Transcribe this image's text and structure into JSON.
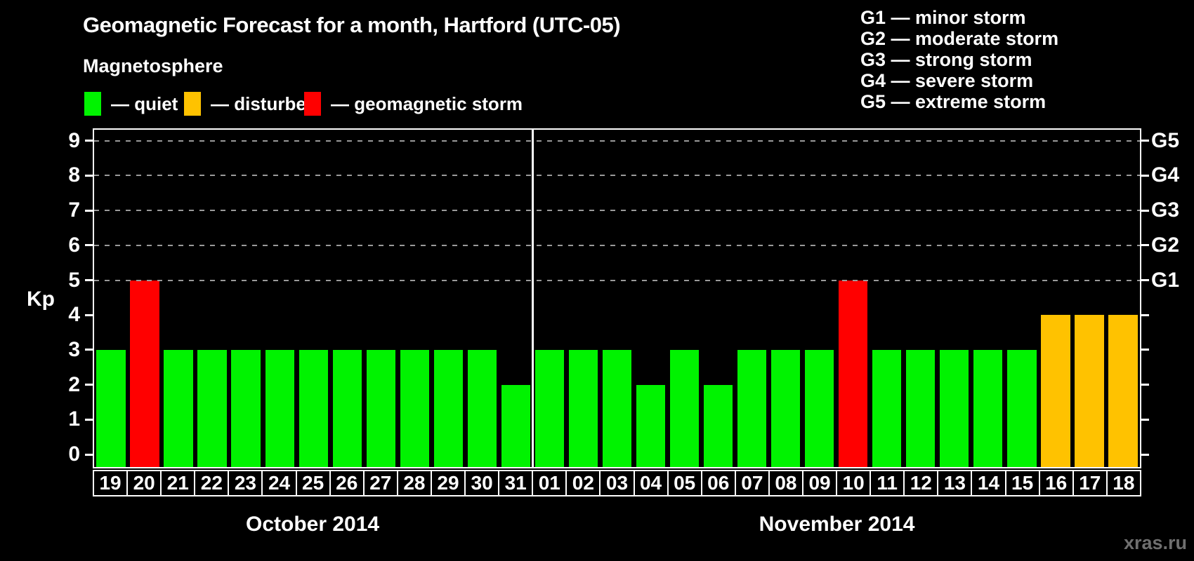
{
  "title": "Geomagnetic Forecast for a month, Hartford (UTC-05)",
  "legend_title": "Magnetosphere",
  "legend": {
    "items": [
      {
        "status": "quiet",
        "label": "— quiet",
        "color": "#00f300"
      },
      {
        "status": "disturbed",
        "label": "— disturbed",
        "color": "#ffc200"
      },
      {
        "status": "storm",
        "label": "— geomagnetic storm",
        "color": "#ff0000"
      }
    ]
  },
  "g_scale_legend": {
    "items": [
      "G1 — minor storm",
      "G2 — moderate storm",
      "G3 — strong storm",
      "G4 — severe storm",
      "G5 — extreme storm"
    ]
  },
  "watermark": "xras.ru",
  "chart_data": {
    "type": "bar",
    "title": "Geomagnetic Forecast for a month, Hartford (UTC-05)",
    "ylabel": "Kp",
    "ylim": [
      0,
      9
    ],
    "yticks": [
      0,
      1,
      2,
      3,
      4,
      5,
      6,
      7,
      8,
      9
    ],
    "gridlines_at": [
      5,
      6,
      7,
      8,
      9
    ],
    "grid": "dashed, only at storm levels",
    "legend_position": "top-left",
    "right_axis_labels": [
      {
        "value": 5,
        "label": "G1"
      },
      {
        "value": 6,
        "label": "G2"
      },
      {
        "value": 7,
        "label": "G3"
      },
      {
        "value": 8,
        "label": "G4"
      },
      {
        "value": 9,
        "label": "G5"
      }
    ],
    "colors": {
      "quiet": "#00f300",
      "disturbed": "#ffc200",
      "storm": "#ff0000"
    },
    "months": [
      {
        "label": "October 2014",
        "days": 13
      },
      {
        "label": "November 2014",
        "days": 18
      }
    ],
    "points": [
      {
        "month": "October 2014",
        "day": "19",
        "kp": 3,
        "status": "quiet"
      },
      {
        "month": "October 2014",
        "day": "20",
        "kp": 5,
        "status": "storm"
      },
      {
        "month": "October 2014",
        "day": "21",
        "kp": 3,
        "status": "quiet"
      },
      {
        "month": "October 2014",
        "day": "22",
        "kp": 3,
        "status": "quiet"
      },
      {
        "month": "October 2014",
        "day": "23",
        "kp": 3,
        "status": "quiet"
      },
      {
        "month": "October 2014",
        "day": "24",
        "kp": 3,
        "status": "quiet"
      },
      {
        "month": "October 2014",
        "day": "25",
        "kp": 3,
        "status": "quiet"
      },
      {
        "month": "October 2014",
        "day": "26",
        "kp": 3,
        "status": "quiet"
      },
      {
        "month": "October 2014",
        "day": "27",
        "kp": 3,
        "status": "quiet"
      },
      {
        "month": "October 2014",
        "day": "28",
        "kp": 3,
        "status": "quiet"
      },
      {
        "month": "October 2014",
        "day": "29",
        "kp": 3,
        "status": "quiet"
      },
      {
        "month": "October 2014",
        "day": "30",
        "kp": 3,
        "status": "quiet"
      },
      {
        "month": "October 2014",
        "day": "31",
        "kp": 2,
        "status": "quiet"
      },
      {
        "month": "November 2014",
        "day": "01",
        "kp": 3,
        "status": "quiet"
      },
      {
        "month": "November 2014",
        "day": "02",
        "kp": 3,
        "status": "quiet"
      },
      {
        "month": "November 2014",
        "day": "03",
        "kp": 3,
        "status": "quiet"
      },
      {
        "month": "November 2014",
        "day": "04",
        "kp": 2,
        "status": "quiet"
      },
      {
        "month": "November 2014",
        "day": "05",
        "kp": 3,
        "status": "quiet"
      },
      {
        "month": "November 2014",
        "day": "06",
        "kp": 2,
        "status": "quiet"
      },
      {
        "month": "November 2014",
        "day": "07",
        "kp": 3,
        "status": "quiet"
      },
      {
        "month": "November 2014",
        "day": "08",
        "kp": 3,
        "status": "quiet"
      },
      {
        "month": "November 2014",
        "day": "09",
        "kp": 3,
        "status": "quiet"
      },
      {
        "month": "November 2014",
        "day": "10",
        "kp": 5,
        "status": "storm"
      },
      {
        "month": "November 2014",
        "day": "11",
        "kp": 3,
        "status": "quiet"
      },
      {
        "month": "November 2014",
        "day": "12",
        "kp": 3,
        "status": "quiet"
      },
      {
        "month": "November 2014",
        "day": "13",
        "kp": 3,
        "status": "quiet"
      },
      {
        "month": "November 2014",
        "day": "14",
        "kp": 3,
        "status": "quiet"
      },
      {
        "month": "November 2014",
        "day": "15",
        "kp": 3,
        "status": "quiet"
      },
      {
        "month": "November 2014",
        "day": "16",
        "kp": 4,
        "status": "disturbed"
      },
      {
        "month": "November 2014",
        "day": "17",
        "kp": 4,
        "status": "disturbed"
      },
      {
        "month": "November 2014",
        "day": "18",
        "kp": 4,
        "status": "disturbed"
      }
    ]
  }
}
